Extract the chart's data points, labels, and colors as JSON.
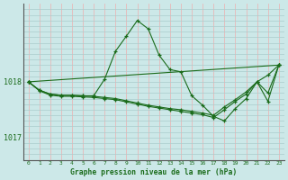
{
  "title": "Graphe pression niveau de la mer (hPa)",
  "bg_color": "#cce8e8",
  "line_color": "#1a6b1a",
  "hgrid_color": "#aacccc",
  "vgrid_color": "#e8b8b8",
  "xlim": [
    -0.5,
    23.5
  ],
  "ylim": [
    1016.6,
    1019.4
  ],
  "yticks": [
    1017,
    1018
  ],
  "xticks": [
    0,
    1,
    2,
    3,
    4,
    5,
    6,
    7,
    8,
    9,
    10,
    11,
    12,
    13,
    14,
    15,
    16,
    17,
    18,
    19,
    20,
    21,
    22,
    23
  ],
  "series": [
    {
      "x": [
        0,
        23
      ],
      "y": [
        1018.0,
        1018.3
      ]
    },
    {
      "x": [
        0,
        1,
        2,
        3,
        4,
        5,
        6,
        7,
        8,
        9,
        10,
        11,
        12,
        13,
        14,
        15,
        16,
        17,
        18,
        19,
        20,
        21,
        22,
        23
      ],
      "y": [
        1018.0,
        1017.85,
        1017.78,
        1017.76,
        1017.76,
        1017.75,
        1017.75,
        1018.05,
        1018.55,
        1018.82,
        1019.1,
        1018.95,
        1018.48,
        1018.22,
        1018.18,
        1017.75,
        1017.58,
        1017.38,
        1017.3,
        1017.52,
        1017.7,
        1018.0,
        1017.65,
        1018.3
      ]
    },
    {
      "x": [
        0,
        1,
        2,
        3,
        4,
        5,
        6,
        7,
        8,
        9,
        10,
        11,
        12,
        13,
        14,
        15,
        16,
        17,
        18,
        19,
        20,
        21,
        22,
        23
      ],
      "y": [
        1018.0,
        1017.85,
        1017.78,
        1017.76,
        1017.76,
        1017.75,
        1017.74,
        1017.72,
        1017.7,
        1017.66,
        1017.62,
        1017.58,
        1017.55,
        1017.52,
        1017.5,
        1017.47,
        1017.44,
        1017.4,
        1017.55,
        1017.68,
        1017.82,
        1018.0,
        1018.12,
        1018.3
      ]
    },
    {
      "x": [
        0,
        1,
        2,
        3,
        4,
        5,
        6,
        7,
        8,
        9,
        10,
        11,
        12,
        13,
        14,
        15,
        16,
        17,
        18,
        19,
        20,
        21,
        22,
        23
      ],
      "y": [
        1018.0,
        1017.84,
        1017.76,
        1017.74,
        1017.74,
        1017.73,
        1017.72,
        1017.7,
        1017.68,
        1017.64,
        1017.6,
        1017.56,
        1017.53,
        1017.5,
        1017.47,
        1017.44,
        1017.41,
        1017.36,
        1017.5,
        1017.65,
        1017.78,
        1018.0,
        1017.8,
        1018.3
      ]
    }
  ]
}
